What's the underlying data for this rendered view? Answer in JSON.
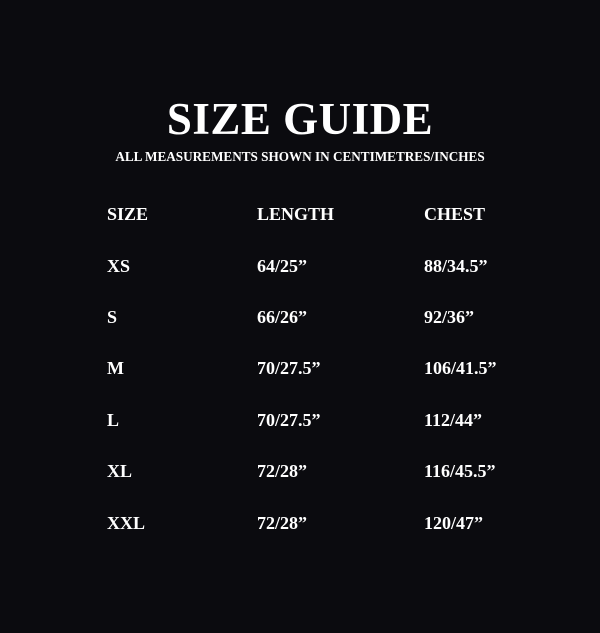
{
  "title": "SIZE GUIDE",
  "subtitle": "ALL MEASUREMENTS SHOWN IN CENTIMETRES/INCHES",
  "colors": {
    "background": "#0b0b0f",
    "text": "#ffffff"
  },
  "table": {
    "headers": [
      "SIZE",
      "LENGTH",
      "CHEST"
    ],
    "rows": [
      [
        "XS",
        "64/25”",
        "88/34.5”"
      ],
      [
        "S",
        "66/26”",
        "92/36”"
      ],
      [
        "M",
        "70/27.5”",
        "106/41.5”"
      ],
      [
        "L",
        "70/27.5”",
        "112/44”"
      ],
      [
        "XL",
        "72/28”",
        "116/45.5”"
      ],
      [
        "XXL",
        "72/28”",
        "120/47”"
      ]
    ]
  }
}
